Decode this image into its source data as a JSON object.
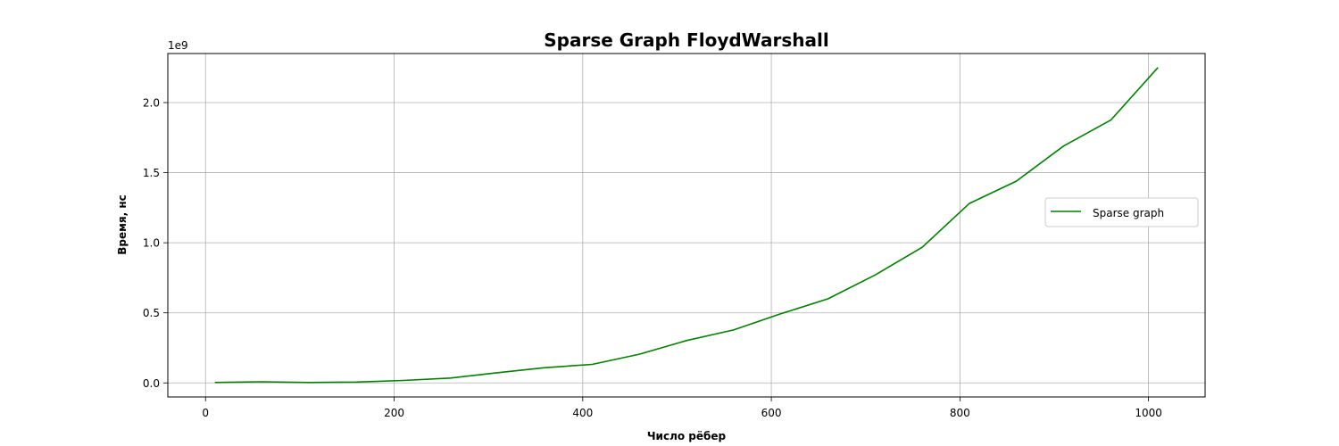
{
  "chart_data": {
    "type": "line",
    "title": "Sparse Graph FloydWarshall",
    "xlabel": "Число рёбер",
    "ylabel": "Время, нс",
    "y_offset_label": "1e9",
    "xlim": [
      -40,
      1060
    ],
    "ylim": [
      -0.1,
      2.35
    ],
    "xticks": [
      0,
      200,
      400,
      600,
      800,
      1000
    ],
    "xtick_labels": [
      "0",
      "200",
      "400",
      "600",
      "800",
      "1000"
    ],
    "yticks": [
      0.0,
      0.5,
      1.0,
      1.5,
      2.0
    ],
    "ytick_labels": [
      "0.0",
      "0.5",
      "1.0",
      "1.5",
      "2.0"
    ],
    "grid": true,
    "legend_position": "center-right",
    "series": [
      {
        "name": "Sparse graph",
        "color": "#008000",
        "x": [
          10,
          60,
          110,
          160,
          210,
          260,
          310,
          360,
          410,
          460,
          510,
          560,
          610,
          660,
          710,
          760,
          810,
          860,
          910,
          960,
          1010
        ],
        "y": [
          0.003,
          0.008,
          0.003,
          0.006,
          0.018,
          0.035,
          0.073,
          0.109,
          0.132,
          0.205,
          0.302,
          0.378,
          0.493,
          0.6,
          0.77,
          0.968,
          1.28,
          1.44,
          1.69,
          1.875,
          2.25
        ]
      }
    ]
  }
}
